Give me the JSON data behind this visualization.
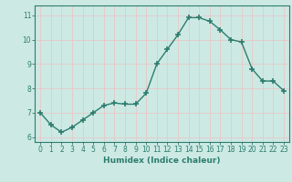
{
  "x": [
    0,
    1,
    2,
    3,
    4,
    5,
    6,
    7,
    8,
    9,
    10,
    11,
    12,
    13,
    14,
    15,
    16,
    17,
    18,
    19,
    20,
    21,
    22,
    23
  ],
  "y": [
    7.0,
    6.5,
    6.2,
    6.4,
    6.7,
    7.0,
    7.3,
    7.4,
    7.35,
    7.35,
    7.8,
    9.0,
    9.6,
    10.2,
    10.9,
    10.9,
    10.75,
    10.4,
    10.0,
    9.9,
    8.8,
    8.3,
    8.3,
    7.9
  ],
  "line_color": "#2d7d6e",
  "marker": "+",
  "marker_size": 4,
  "marker_lw": 1.2,
  "bg_color": "#cce9e4",
  "grid_major_color": "#e8c8c8",
  "grid_major_lw": 0.6,
  "xlabel": "Humidex (Indice chaleur)",
  "xlim": [
    -0.5,
    23.5
  ],
  "ylim": [
    5.8,
    11.4
  ],
  "yticks": [
    6,
    7,
    8,
    9,
    10,
    11
  ],
  "xticks": [
    0,
    1,
    2,
    3,
    4,
    5,
    6,
    7,
    8,
    9,
    10,
    11,
    12,
    13,
    14,
    15,
    16,
    17,
    18,
    19,
    20,
    21,
    22,
    23
  ],
  "tick_color": "#2d7d6e",
  "label_fontsize": 6.5,
  "tick_fontsize": 5.5,
  "line_width": 1.0,
  "spine_color": "#2d7d6e",
  "spine_lw": 0.8
}
